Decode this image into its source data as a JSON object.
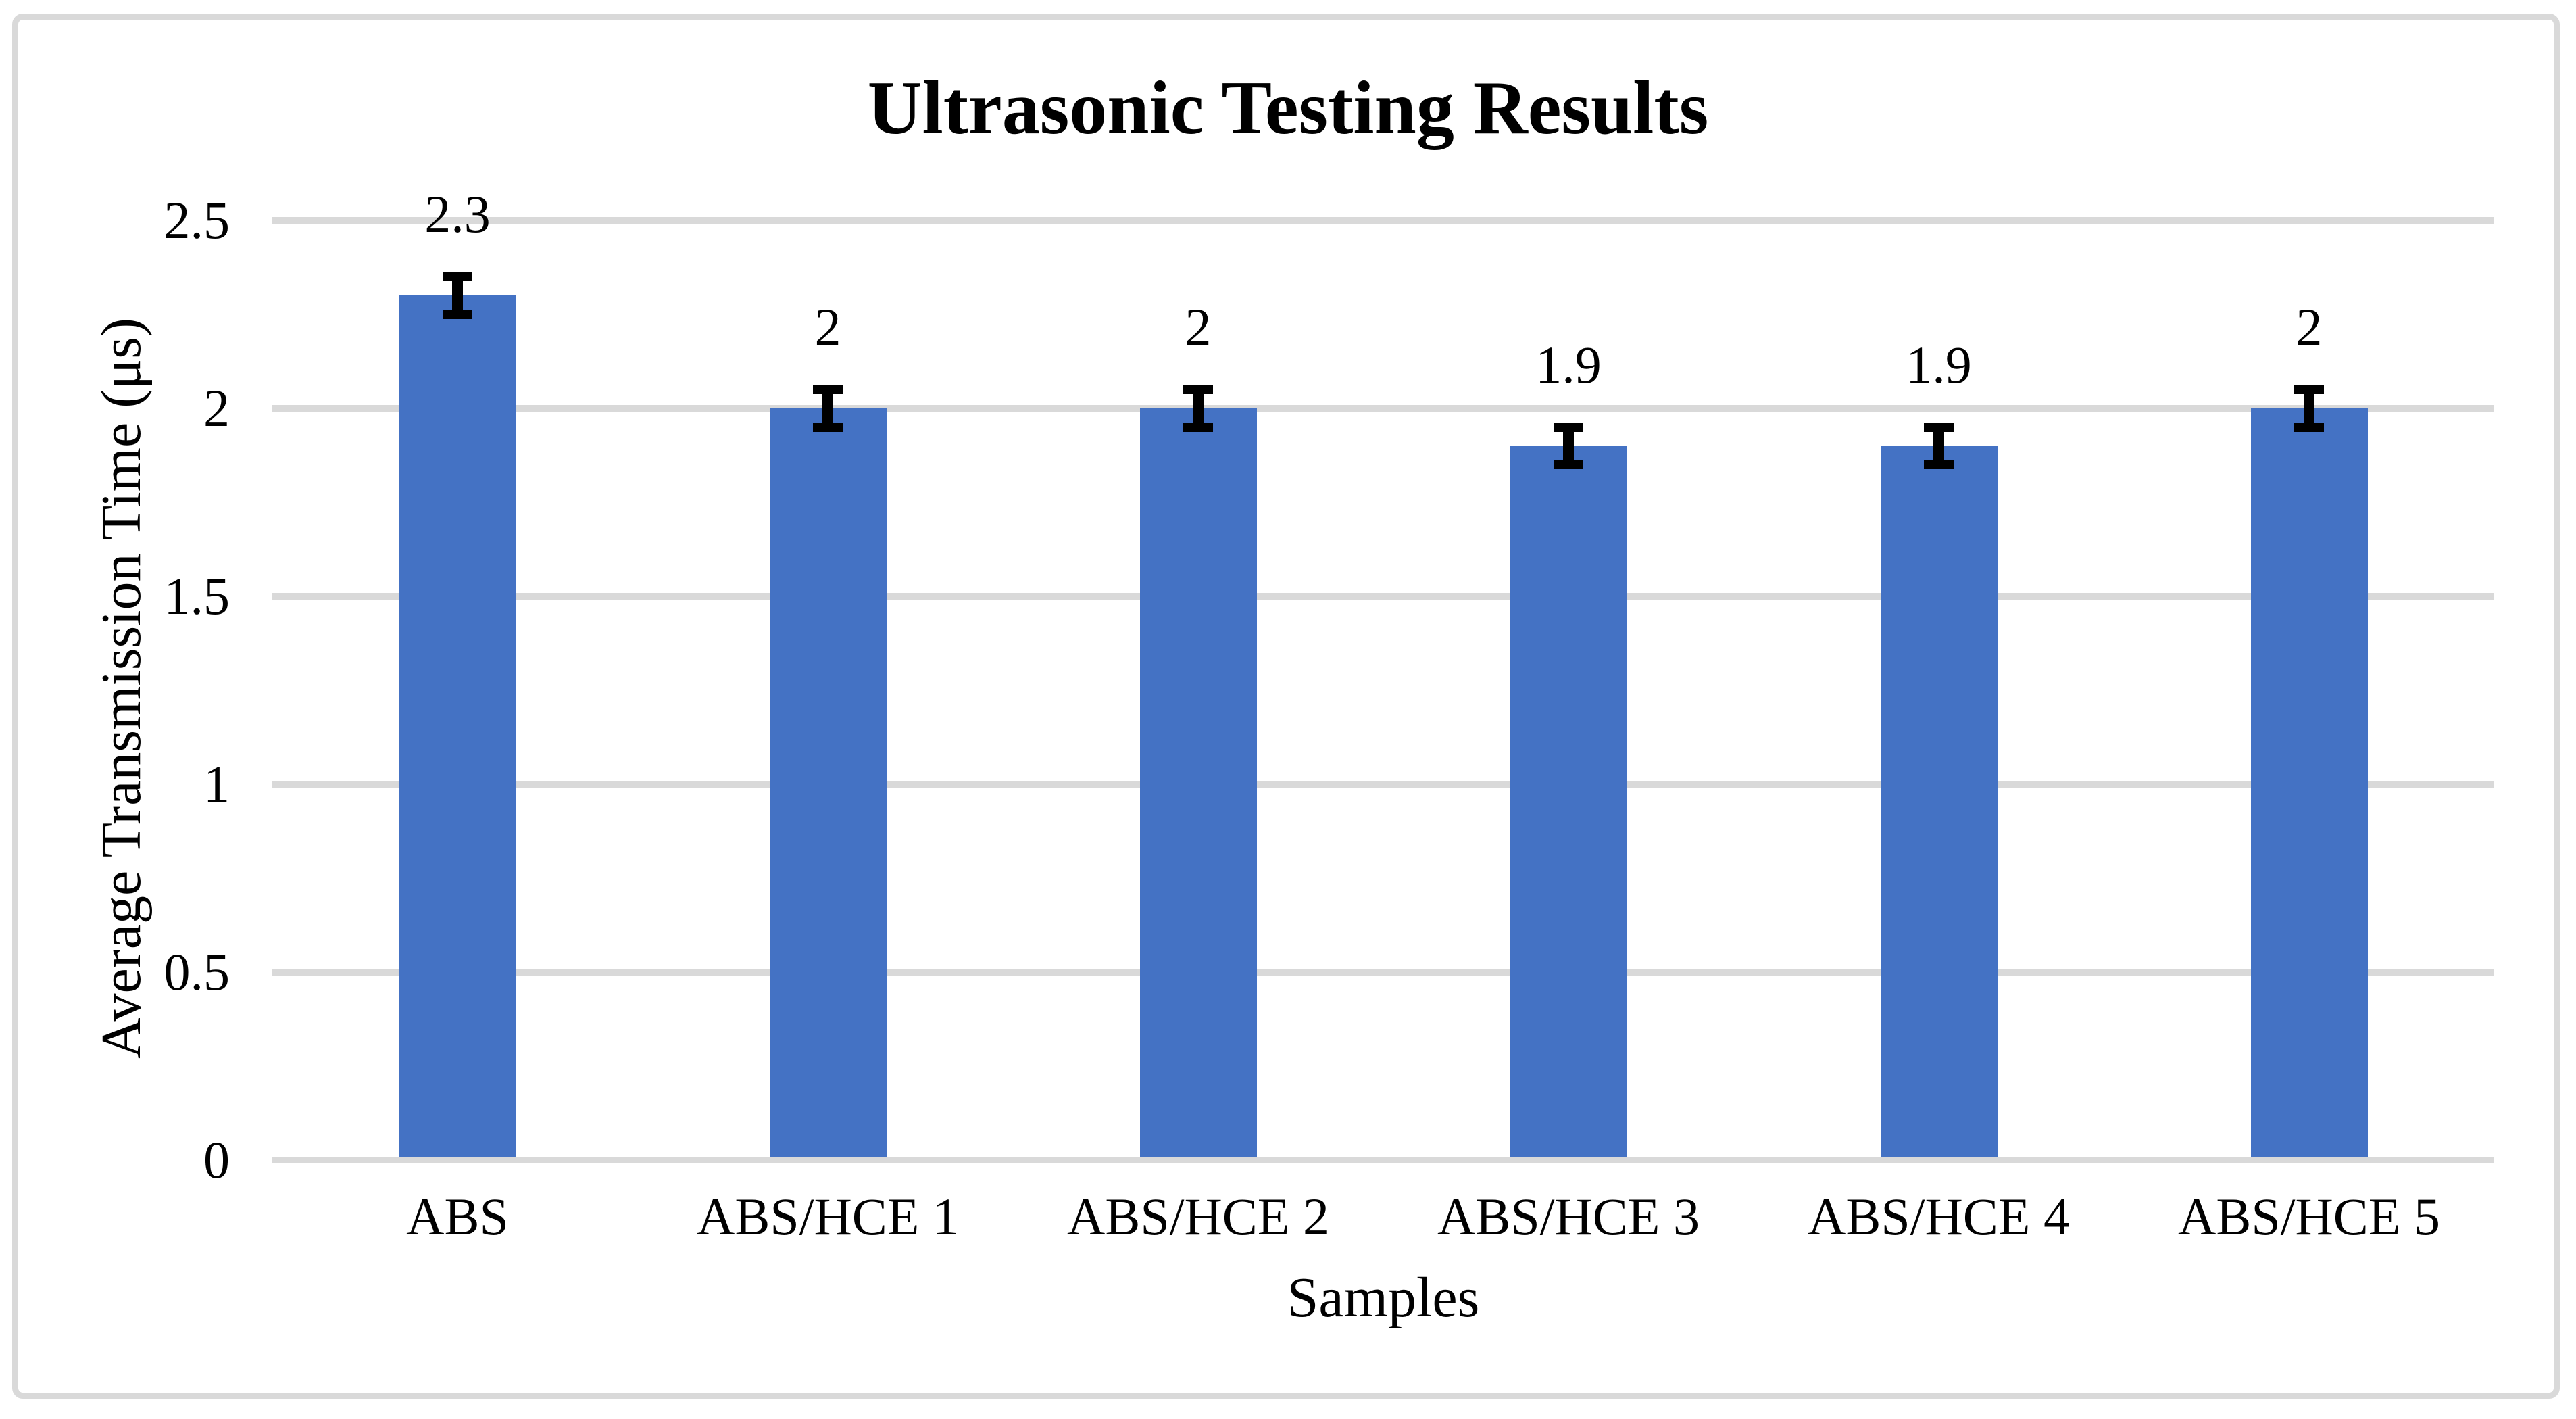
{
  "figure": {
    "title": "Ultrasonic Testing Results"
  },
  "chart_data": {
    "type": "bar",
    "title": "Ultrasonic Testing Results",
    "categories": [
      "ABS",
      "ABS/HCE 1",
      "ABS/HCE 2",
      "ABS/HCE 3",
      "ABS/HCE 4",
      "ABS/HCE 5"
    ],
    "values": [
      2.3,
      2,
      2,
      1.9,
      1.9,
      2
    ],
    "value_labels": [
      "2.3",
      "2",
      "2",
      "1.9",
      "1.9",
      "2"
    ],
    "error_bars": {
      "plus": 0.05,
      "minus": 0.05
    },
    "xlabel": "Samples",
    "ylabel": "Average Transmission Time (μs)",
    "ylim": [
      0,
      2.5
    ],
    "ytick_interval": 0.5,
    "ytick_labels": [
      "0",
      "0.5",
      "1",
      "1.5",
      "2",
      "2.5"
    ],
    "grid": true,
    "legend": false,
    "colors": {
      "bar": "#4472C4",
      "gridline": "#D9D9D9",
      "axis_line": "#D9D9D9",
      "error_bar": "#000000",
      "text": "#000000",
      "frame_border": "#D9D9D9"
    }
  }
}
